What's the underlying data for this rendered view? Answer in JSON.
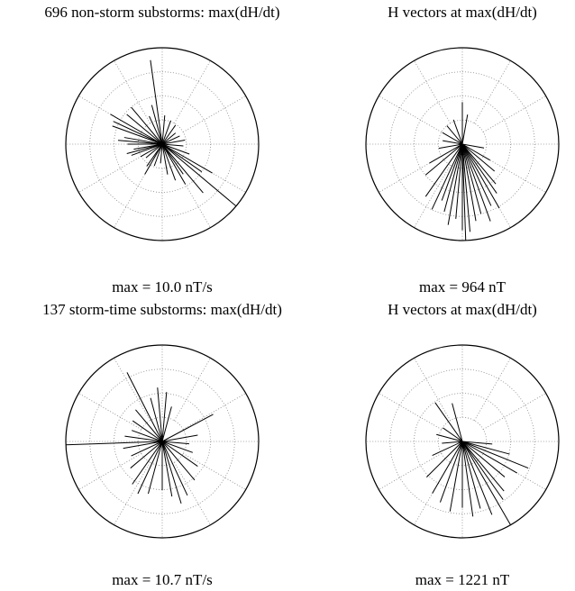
{
  "chart_data": [
    {
      "type": "polar",
      "title": "696 non-storm substorms: max(dH/dt)",
      "note": "max = 10.0 nT/s",
      "rlim": [
        0,
        10.0
      ],
      "rticks": [
        2.5,
        5,
        7.5
      ],
      "theta_ticks": [
        0,
        30,
        60,
        90,
        120,
        150,
        180,
        210,
        240,
        270,
        300,
        330
      ],
      "color": "#000000",
      "theta": [
        352,
        300,
        290,
        310,
        320,
        280,
        270,
        260,
        250,
        240,
        230,
        215,
        200,
        185,
        170,
        160,
        145,
        130,
        120,
        110,
        95,
        80,
        65,
        50,
        35,
        20,
        5,
        335,
        345,
        150,
        140,
        125,
        210,
        255,
        275,
        295
      ],
      "r": [
        8.8,
        6.2,
        5.5,
        4.8,
        5.0,
        4.0,
        3.6,
        3.0,
        3.4,
        2.6,
        2.2,
        2.8,
        2.4,
        2.0,
        3.2,
        4.0,
        3.8,
        10.0,
        6.0,
        3.0,
        2.2,
        2.4,
        2.0,
        1.8,
        2.4,
        2.6,
        3.0,
        3.2,
        4.2,
        4.8,
        6.6,
        5.0,
        3.6,
        3.8,
        4.6,
        5.6
      ]
    },
    {
      "type": "polar",
      "title": "H vectors at max(dH/dt)",
      "note": "max = 964 nT",
      "rlim": [
        0,
        964
      ],
      "rticks": [
        241,
        482,
        723
      ],
      "theta_ticks": [
        0,
        30,
        60,
        90,
        120,
        150,
        180,
        210,
        240,
        270,
        300,
        330
      ],
      "color": "#000000",
      "theta": [
        0,
        10,
        340,
        320,
        300,
        280,
        260,
        240,
        230,
        215,
        205,
        200,
        195,
        190,
        185,
        180,
        178,
        175,
        170,
        165,
        160,
        155,
        150,
        145,
        140,
        130,
        120,
        100
      ],
      "r": [
        420,
        300,
        260,
        240,
        230,
        200,
        240,
        380,
        480,
        640,
        720,
        600,
        700,
        820,
        750,
        860,
        964,
        880,
        780,
        720,
        820,
        680,
        740,
        600,
        520,
        420,
        320,
        220
      ]
    },
    {
      "type": "polar",
      "title": "137 storm-time substorms: max(dH/dt)",
      "note": "max = 10.7 nT/s",
      "rlim": [
        0,
        10.7
      ],
      "rticks": [
        2.675,
        5.35,
        8.025
      ],
      "theta_ticks": [
        0,
        30,
        60,
        90,
        120,
        150,
        180,
        210,
        240,
        270,
        300,
        330
      ],
      "color": "#000000",
      "theta": [
        333,
        355,
        5,
        15,
        62,
        80,
        95,
        110,
        125,
        140,
        155,
        163,
        170,
        180,
        195,
        205,
        215,
        230,
        245,
        260,
        268,
        278,
        290,
        305,
        320,
        345
      ],
      "r": [
        8.6,
        6.0,
        5.5,
        4.0,
        6.4,
        4.0,
        3.0,
        3.6,
        4.8,
        5.6,
        6.6,
        7.2,
        6.2,
        5.4,
        6.0,
        6.4,
        5.8,
        4.6,
        3.8,
        4.4,
        10.7,
        4.2,
        3.6,
        4.0,
        4.6,
        5.0
      ]
    },
    {
      "type": "polar",
      "title": "H vectors at max(dH/dt)",
      "note": "max = 1221 nT",
      "rlim": [
        0,
        1221
      ],
      "rticks": [
        305.25,
        610.5,
        915.75
      ],
      "theta_ticks": [
        0,
        30,
        60,
        90,
        120,
        150,
        180,
        210,
        240,
        270,
        300,
        330
      ],
      "color": "#000000",
      "theta": [
        345,
        325,
        305,
        285,
        265,
        245,
        225,
        210,
        200,
        190,
        180,
        172,
        165,
        158,
        150,
        145,
        140,
        130,
        120,
        112,
        105,
        95
      ],
      "r": [
        500,
        600,
        300,
        340,
        260,
        420,
        640,
        760,
        820,
        900,
        840,
        960,
        880,
        1000,
        1221,
        900,
        820,
        700,
        800,
        900,
        620,
        380
      ]
    }
  ]
}
